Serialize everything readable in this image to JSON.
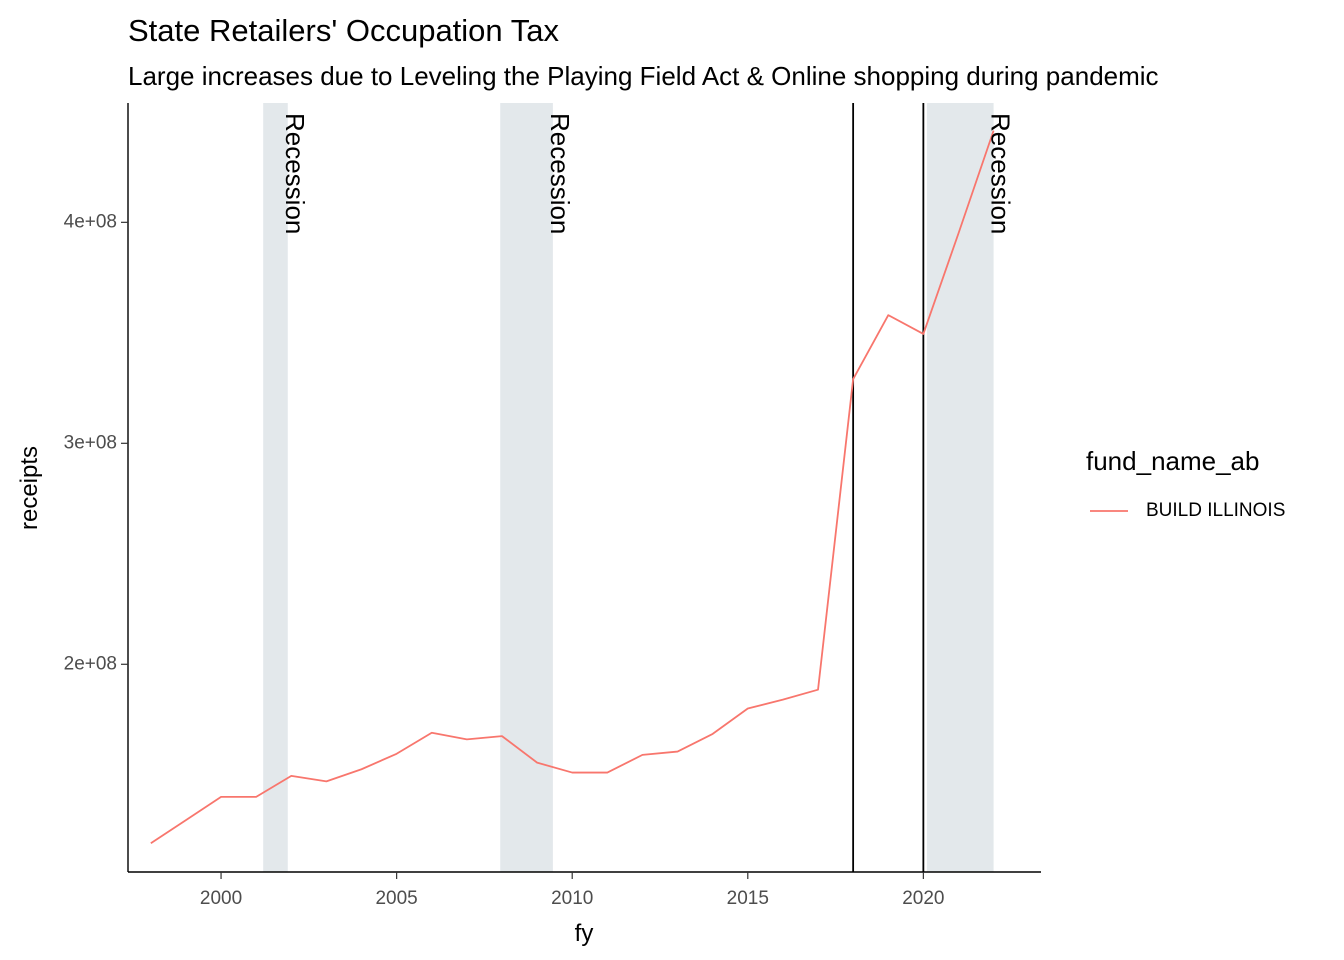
{
  "chart_data": {
    "type": "line",
    "title": "State Retailers' Occupation Tax",
    "subtitle": "Large increases due to Leveling the Playing Field Act & Online shopping during pandemic",
    "xlabel": "fy",
    "ylabel": "receipts",
    "xlim": [
      1997.35,
      2023.35
    ],
    "ylim": [
      106000000,
      454000000
    ],
    "x_ticks": [
      2000,
      2005,
      2010,
      2015,
      2020
    ],
    "x_tick_labels": [
      "2000",
      "2005",
      "2010",
      "2015",
      "2020"
    ],
    "y_ticks": [
      200000000,
      300000000,
      400000000
    ],
    "y_tick_labels": [
      "2e+08",
      "3e+08",
      "4e+08"
    ],
    "grid": false,
    "legend_position": "right",
    "legend_title": "fund_name_ab",
    "recessions": [
      {
        "start": 2001.2,
        "end": 2001.9,
        "label": "Recession"
      },
      {
        "start": 2007.95,
        "end": 2009.45,
        "label": "Recession"
      },
      {
        "start": 2020.1,
        "end": 2022.0,
        "label": "Recession"
      }
    ],
    "vlines": [
      2018,
      2020
    ],
    "series": [
      {
        "name": "BUILD ILLINOIS",
        "color": "#F8766D",
        "x": [
          1998,
          1999,
          2000,
          2001,
          2002,
          2003,
          2004,
          2005,
          2006,
          2007,
          2008,
          2009,
          2010,
          2011,
          2012,
          2013,
          2014,
          2015,
          2016,
          2017,
          2018,
          2019,
          2020,
          2021,
          2022
        ],
        "y": [
          119000000,
          129500000,
          140000000,
          140000000,
          149500000,
          147000000,
          152500000,
          159500000,
          169000000,
          166000000,
          167500000,
          155500000,
          151000000,
          151000000,
          159000000,
          160500000,
          168500000,
          180000000,
          184000000,
          188500000,
          329000000,
          358000000,
          349500000,
          395000000,
          441500000
        ]
      }
    ]
  }
}
